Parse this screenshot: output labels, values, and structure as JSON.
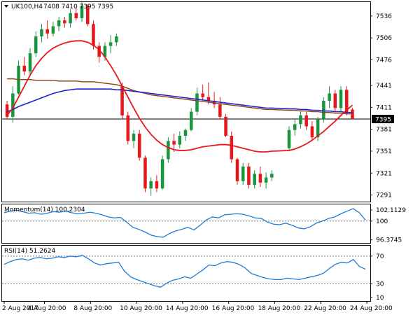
{
  "chart_data": [
    {
      "type": "candlestick",
      "title": "UK100,H4",
      "ohlc_readout": "7408 7410 7395 7395",
      "current_price": 7395,
      "current_price_label": "7395",
      "y_ticks": [
        7291,
        7321,
        7351,
        7381,
        7411,
        7441,
        7476,
        7506,
        7536
      ],
      "y_tick_labels": [
        "7291",
        "7321",
        "7351",
        "7381",
        "7411",
        "7441",
        "7476",
        "7506",
        "7536"
      ],
      "ylim": [
        7282,
        7555
      ],
      "x_labels": [
        "2 Aug 2017",
        "4 Aug 20:00",
        "8 Aug 20:00",
        "10 Aug 20:00",
        "14 Aug 20:00",
        "16 Aug 20:00",
        "18 Aug 20:00",
        "22 Aug 20:00",
        "24 Aug 20:00"
      ],
      "colors": {
        "bull": "#1a9641",
        "bear": "#e8171b",
        "sma_fast": "#e8171b",
        "sma_mid": "#2222cc",
        "sma_slow": "#8b4513"
      },
      "candles": [
        [
          7415,
          7420,
          7395,
          7398
        ],
        [
          7398,
          7440,
          7390,
          7430
        ],
        [
          7430,
          7475,
          7428,
          7468
        ],
        [
          7468,
          7480,
          7455,
          7460
        ],
        [
          7460,
          7492,
          7455,
          7485
        ],
        [
          7485,
          7515,
          7480,
          7508
        ],
        [
          7508,
          7525,
          7500,
          7518
        ],
        [
          7518,
          7530,
          7505,
          7512
        ],
        [
          7512,
          7528,
          7508,
          7522
        ],
        [
          7522,
          7535,
          7515,
          7530
        ],
        [
          7530,
          7535,
          7520,
          7526
        ],
        [
          7526,
          7545,
          7520,
          7540
        ],
        [
          7540,
          7548,
          7530,
          7533
        ],
        [
          7533,
          7555,
          7528,
          7550
        ],
        [
          7550,
          7552,
          7522,
          7525
        ],
        [
          7525,
          7530,
          7490,
          7495
        ],
        [
          7495,
          7500,
          7472,
          7480
        ],
        [
          7480,
          7500,
          7475,
          7495
        ],
        [
          7495,
          7510,
          7485,
          7500
        ],
        [
          7500,
          7512,
          7495,
          7508
        ],
        [
          7440,
          7445,
          7395,
          7400
        ],
        [
          7400,
          7405,
          7360,
          7365
        ],
        [
          7365,
          7380,
          7355,
          7375
        ],
        [
          7375,
          7380,
          7338,
          7342
        ],
        [
          7342,
          7345,
          7295,
          7300
        ],
        [
          7300,
          7315,
          7290,
          7310
        ],
        [
          7310,
          7318,
          7295,
          7300
        ],
        [
          7300,
          7345,
          7298,
          7340
        ],
        [
          7340,
          7370,
          7335,
          7365
        ],
        [
          7365,
          7375,
          7350,
          7360
        ],
        [
          7360,
          7378,
          7355,
          7372
        ],
        [
          7372,
          7382,
          7365,
          7380
        ],
        [
          7380,
          7410,
          7378,
          7405
        ],
        [
          7405,
          7438,
          7400,
          7430
        ],
        [
          7430,
          7442,
          7420,
          7425
        ],
        [
          7425,
          7445,
          7415,
          7420
        ],
        [
          7420,
          7432,
          7410,
          7415
        ],
        [
          7415,
          7425,
          7395,
          7398
        ],
        [
          7398,
          7402,
          7370,
          7372
        ],
        [
          7372,
          7378,
          7335,
          7340
        ],
        [
          7340,
          7342,
          7305,
          7310
        ],
        [
          7310,
          7335,
          7305,
          7330
        ],
        [
          7330,
          7335,
          7300,
          7305
        ],
        [
          7305,
          7325,
          7300,
          7320
        ],
        [
          7320,
          7330,
          7302,
          7308
        ],
        [
          7308,
          7322,
          7300,
          7315
        ],
        [
          7315,
          7325,
          7310,
          7320
        ],
        [
          7355,
          7385,
          7352,
          7380
        ],
        [
          7380,
          7395,
          7372,
          7388
        ],
        [
          7388,
          7405,
          7382,
          7400
        ],
        [
          7400,
          7405,
          7380,
          7385
        ],
        [
          7385,
          7392,
          7365,
          7370
        ],
        [
          7370,
          7398,
          7365,
          7395
        ],
        [
          7395,
          7425,
          7390,
          7420
        ],
        [
          7420,
          7440,
          7410,
          7430
        ],
        [
          7430,
          7435,
          7405,
          7410
        ],
        [
          7410,
          7440,
          7405,
          7435
        ],
        [
          7435,
          7440,
          7400,
          7403
        ],
        [
          7408,
          7410,
          7395,
          7395
        ]
      ],
      "candle_slots": [
        0,
        1,
        2,
        3,
        4,
        5,
        6,
        7,
        8,
        9,
        10,
        11,
        12,
        13,
        14,
        15,
        16,
        17,
        18,
        19,
        20,
        21,
        22,
        23,
        24,
        25,
        26,
        27,
        28,
        29,
        30,
        31,
        32,
        33,
        34,
        35,
        36,
        37,
        38,
        39,
        40,
        41,
        42,
        43,
        44,
        45,
        46,
        49,
        50,
        51,
        52,
        53,
        54,
        55,
        56,
        57,
        58,
        59,
        60
      ],
      "sma_fast": [
        7400,
        7410,
        7425,
        7440,
        7455,
        7468,
        7478,
        7486,
        7492,
        7496,
        7499,
        7501,
        7502,
        7502,
        7500,
        7496,
        7490,
        7480,
        7468,
        7455,
        7440,
        7425,
        7410,
        7396,
        7384,
        7374,
        7366,
        7360,
        7356,
        7353,
        7352,
        7352,
        7353,
        7355,
        7357,
        7358,
        7359,
        7360,
        7360,
        7359,
        7357,
        7355,
        7353,
        7351,
        7350,
        7350,
        7351,
        7352,
        7354,
        7357,
        7361,
        7366,
        7372,
        7378,
        7385,
        7392,
        7400,
        7407,
        7414
      ],
      "sma_mid": [
        7405,
        7408,
        7412,
        7415,
        7418,
        7421,
        7424,
        7427,
        7430,
        7432,
        7434,
        7435,
        7436,
        7436,
        7436,
        7436,
        7436,
        7436,
        7436,
        7435,
        7435,
        7434,
        7433,
        7432,
        7431,
        7430,
        7429,
        7428,
        7427,
        7426,
        7425,
        7424,
        7423,
        7422,
        7421,
        7420,
        7419,
        7418,
        7417,
        7416,
        7415,
        7414,
        7413,
        7412,
        7411,
        7410,
        7410,
        7409,
        7409,
        7408,
        7408,
        7407,
        7407,
        7406,
        7406,
        7405,
        7405,
        7404,
        7404
      ],
      "sma_slow": [
        7450,
        7450,
        7449,
        7449,
        7449,
        7448,
        7448,
        7448,
        7448,
        7447,
        7447,
        7447,
        7447,
        7446,
        7446,
        7446,
        7445,
        7444,
        7443,
        7442,
        7440,
        7437,
        7434,
        7432,
        7430,
        7428,
        7427,
        7426,
        7425,
        7424,
        7423,
        7422,
        7421,
        7420,
        7419,
        7418,
        7417,
        7416,
        7415,
        7414,
        7413,
        7412,
        7411,
        7410,
        7409,
        7408,
        7408,
        7407,
        7407,
        7406,
        7406,
        7405,
        7405,
        7404,
        7404,
        7403,
        7403,
        7402,
        7402
      ]
    },
    {
      "type": "line",
      "title": "Momentum(14) 100.2304",
      "y_tick_labels": [
        "102.1129",
        "100",
        "96.3745"
      ],
      "y_ticks": [
        102.1129,
        100,
        96.3745
      ],
      "ylim": [
        95.8,
        103.2
      ],
      "reference_line": 100,
      "color": "#1e7bd8",
      "values": [
        101.6,
        101.9,
        102.1,
        101.8,
        101.5,
        101.6,
        101.3,
        101.5,
        101.8,
        101.7,
        101.9,
        101.6,
        101.4,
        101.5,
        101.7,
        101.5,
        101.2,
        100.8,
        100.6,
        100.7,
        99.8,
        98.8,
        98.4,
        97.9,
        97.3,
        97.0,
        96.9,
        97.6,
        98.1,
        98.4,
        98.8,
        98.3,
        99.2,
        100.2,
        100.8,
        100.6,
        101.2,
        101.3,
        101.4,
        101.3,
        101.0,
        100.6,
        100.5,
        99.8,
        99.4,
        99.3,
        99.6,
        99.2,
        98.7,
        98.5,
        98.9,
        99.6,
        100.0,
        100.5,
        100.8,
        101.4,
        101.9,
        102.4,
        101.6,
        100.2
      ]
    },
    {
      "type": "line",
      "title": "RSI(14) 51.2624",
      "y_tick_labels": [
        "70",
        "30",
        "10"
      ],
      "y_ticks": [
        70,
        30,
        10
      ],
      "ylim": [
        5,
        85
      ],
      "levels": [
        70,
        30
      ],
      "color": "#1e7bd8",
      "values": [
        58,
        62,
        65,
        66,
        64,
        67,
        68,
        66,
        67,
        69,
        68,
        70,
        69,
        71,
        66,
        60,
        57,
        59,
        60,
        61,
        48,
        40,
        36,
        33,
        30,
        27,
        25,
        31,
        35,
        37,
        40,
        38,
        44,
        50,
        57,
        56,
        60,
        62,
        61,
        58,
        53,
        45,
        42,
        39,
        37,
        36,
        36,
        38,
        37,
        36,
        38,
        40,
        42,
        45,
        52,
        58,
        61,
        60,
        65,
        55,
        51
      ]
    }
  ]
}
